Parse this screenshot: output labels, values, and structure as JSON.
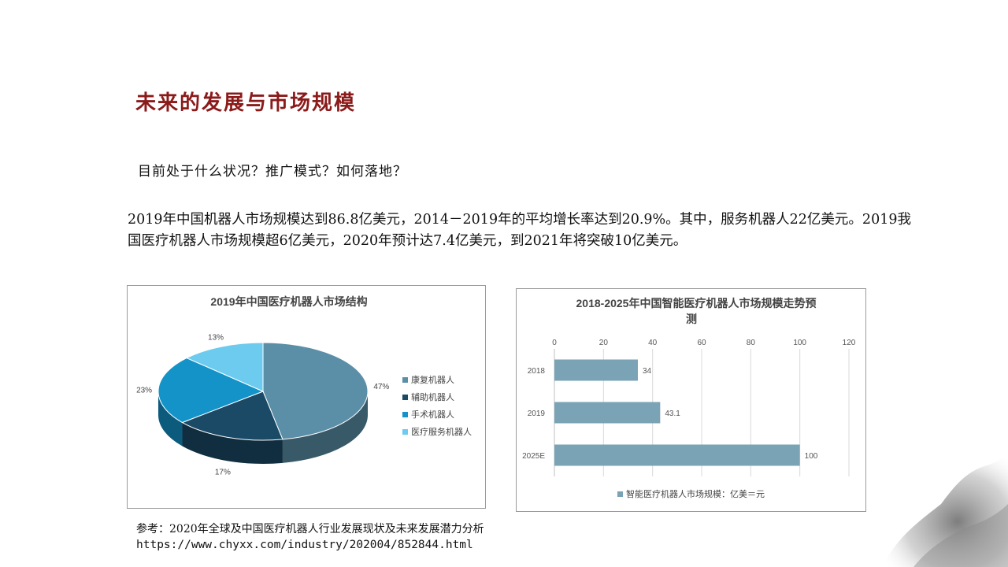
{
  "slide": {
    "title": "未来的发展与市场规模",
    "question": "目前处于什么状况？推广模式？如何落地？",
    "paragraph": "2019年中国机器人市场规模达到86.8亿美元，2014－2019年的平均增长率达到20.9%。其中，服务机器人22亿美元。2019我国医疗机器人市场规模超6亿美元，2020年预计达7.4亿美元，到2021年将突破10亿美元。",
    "reference_label": "参考：2020年全球及中国医疗机器人行业发展现状及未来发展潜力分析",
    "reference_url": "https://www.chyxx.com/industry/202004/852844.html"
  },
  "chart_data": [
    {
      "type": "pie",
      "title": "2019年中国医疗机器人市场结构",
      "categories": [
        "康复机器人",
        "辅助机器人",
        "手术机器人",
        "医疗服务机器人"
      ],
      "values": [
        47,
        17,
        23,
        13
      ],
      "labels": [
        "47%",
        "17%",
        "23%",
        "13%"
      ],
      "colors": [
        "#5b8fa8",
        "#1a4a66",
        "#1493c9",
        "#6ccbef"
      ],
      "legend": "right"
    },
    {
      "type": "bar",
      "orientation": "horizontal",
      "title": "2018-2025年中国智能医疗机器人市场规模走势预测",
      "categories": [
        "2018",
        "2019",
        "2025E"
      ],
      "series": [
        {
          "name": "智能医疗机器人市场规模：亿美＝元",
          "values": [
            34,
            43.1,
            100
          ]
        }
      ],
      "data_labels": [
        "34",
        "43.1",
        "100"
      ],
      "xlim": [
        0,
        120
      ],
      "xticks": [
        "0",
        "20",
        "40",
        "60",
        "80",
        "100",
        "120"
      ],
      "grid": true,
      "legend": "bottom",
      "color": "#7aa3b6"
    }
  ]
}
